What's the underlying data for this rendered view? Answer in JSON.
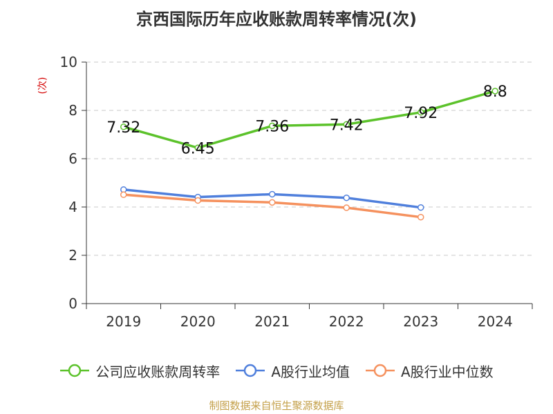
{
  "chart_data": {
    "type": "line",
    "title": "京西国际历年应收账款周转率情况(次)",
    "ylabel": "(次)",
    "xlabel": "",
    "categories": [
      "2019",
      "2020",
      "2021",
      "2022",
      "2023",
      "2024"
    ],
    "ylim": [
      0,
      10
    ],
    "yticks": [
      0,
      2,
      4,
      6,
      8,
      10
    ],
    "grid": true,
    "legend_position": "bottom",
    "series": [
      {
        "name": "公司应收账款周转率",
        "color": "#5cc22b",
        "show_labels": true,
        "values": [
          7.32,
          6.45,
          7.36,
          7.42,
          7.92,
          8.8
        ]
      },
      {
        "name": "A股行业均值",
        "color": "#4f7fdc",
        "show_labels": false,
        "values": [
          4.72,
          4.41,
          4.53,
          4.38,
          3.98,
          null
        ]
      },
      {
        "name": "A股行业中位数",
        "color": "#f5915e",
        "show_labels": false,
        "values": [
          4.51,
          4.27,
          4.19,
          3.97,
          3.58,
          null
        ]
      }
    ],
    "source": "制图数据来自恒生聚源数据库"
  }
}
